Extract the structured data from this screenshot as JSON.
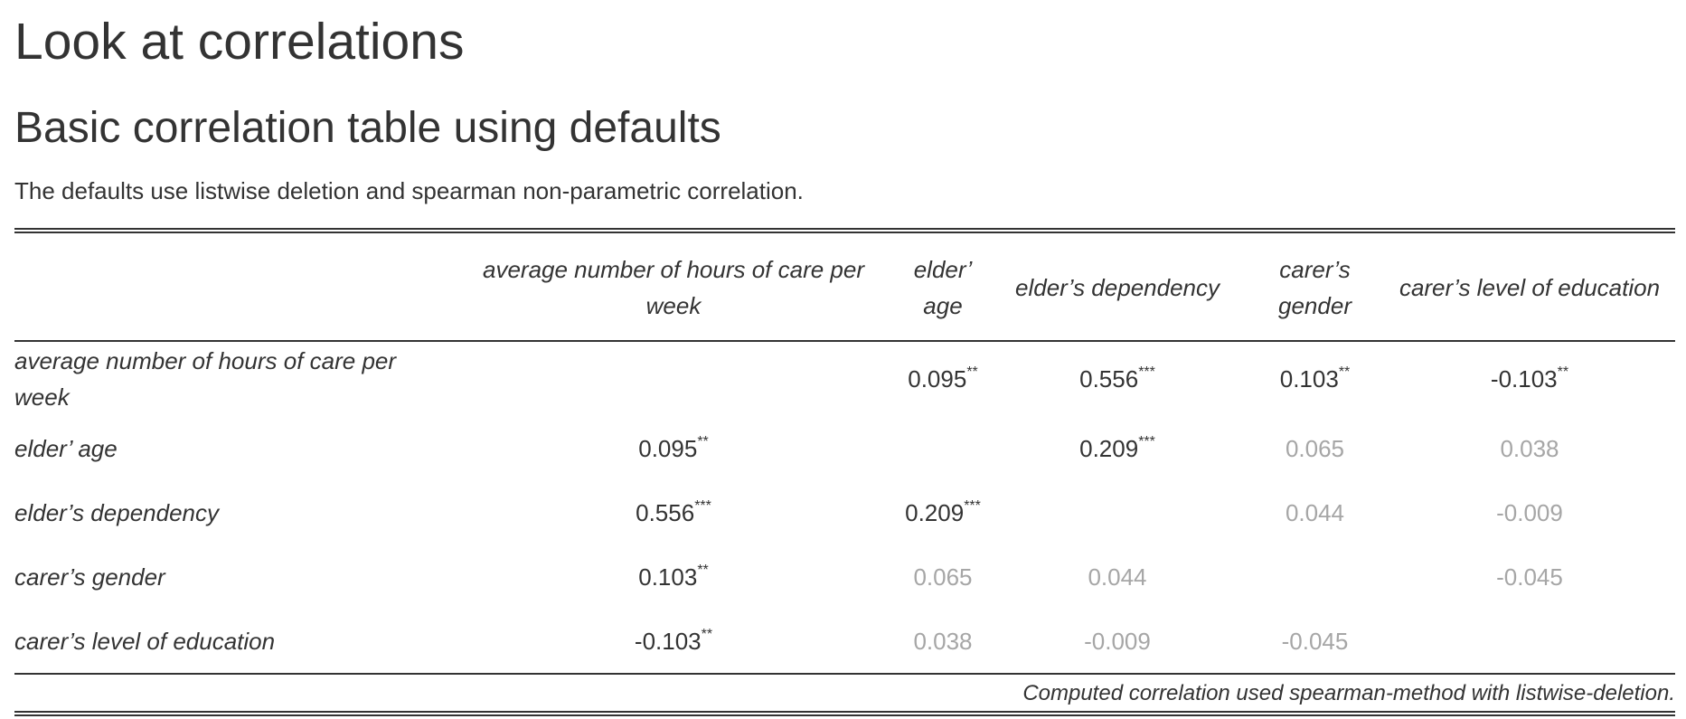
{
  "page": {
    "title": "Look at correlations",
    "subtitle": "Basic correlation table using defaults",
    "description": "The defaults use listwise deletion and spearman non-parametric correlation."
  },
  "table": {
    "header": [
      "",
      "average number of hours of care per week",
      "elder’ age",
      "elder’s dependency",
      "carer’s gender",
      "carer’s level of education"
    ],
    "rows": [
      {
        "label": "average number of hours of care per week",
        "cells": [
          {
            "value": "",
            "stars": "",
            "significant": true
          },
          {
            "value": "0.095",
            "stars": "**",
            "significant": true
          },
          {
            "value": "0.556",
            "stars": "***",
            "significant": true
          },
          {
            "value": "0.103",
            "stars": "**",
            "significant": true
          },
          {
            "value": "-0.103",
            "stars": "**",
            "significant": true
          }
        ]
      },
      {
        "label": "elder’ age",
        "cells": [
          {
            "value": "0.095",
            "stars": "**",
            "significant": true
          },
          {
            "value": "",
            "stars": "",
            "significant": true
          },
          {
            "value": "0.209",
            "stars": "***",
            "significant": true
          },
          {
            "value": "0.065",
            "stars": "",
            "significant": false
          },
          {
            "value": "0.038",
            "stars": "",
            "significant": false
          }
        ]
      },
      {
        "label": "elder’s dependency",
        "cells": [
          {
            "value": "0.556",
            "stars": "***",
            "significant": true
          },
          {
            "value": "0.209",
            "stars": "***",
            "significant": true
          },
          {
            "value": "",
            "stars": "",
            "significant": true
          },
          {
            "value": "0.044",
            "stars": "",
            "significant": false
          },
          {
            "value": "-0.009",
            "stars": "",
            "significant": false
          }
        ]
      },
      {
        "label": "carer’s gender",
        "cells": [
          {
            "value": "0.103",
            "stars": "**",
            "significant": true
          },
          {
            "value": "0.065",
            "stars": "",
            "significant": false
          },
          {
            "value": "0.044",
            "stars": "",
            "significant": false
          },
          {
            "value": "",
            "stars": "",
            "significant": true
          },
          {
            "value": "-0.045",
            "stars": "",
            "significant": false
          }
        ]
      },
      {
        "label": "carer’s level of education",
        "cells": [
          {
            "value": "-0.103",
            "stars": "**",
            "significant": true
          },
          {
            "value": "0.038",
            "stars": "",
            "significant": false
          },
          {
            "value": "-0.009",
            "stars": "",
            "significant": false
          },
          {
            "value": "-0.045",
            "stars": "",
            "significant": false
          },
          {
            "value": "",
            "stars": "",
            "significant": true
          }
        ]
      }
    ],
    "footnote": "Computed correlation used spearman-method with listwise-deletion."
  },
  "colors": {
    "text": "#333333",
    "nonsignificant": "#a6a6a6",
    "background": "#ffffff"
  }
}
